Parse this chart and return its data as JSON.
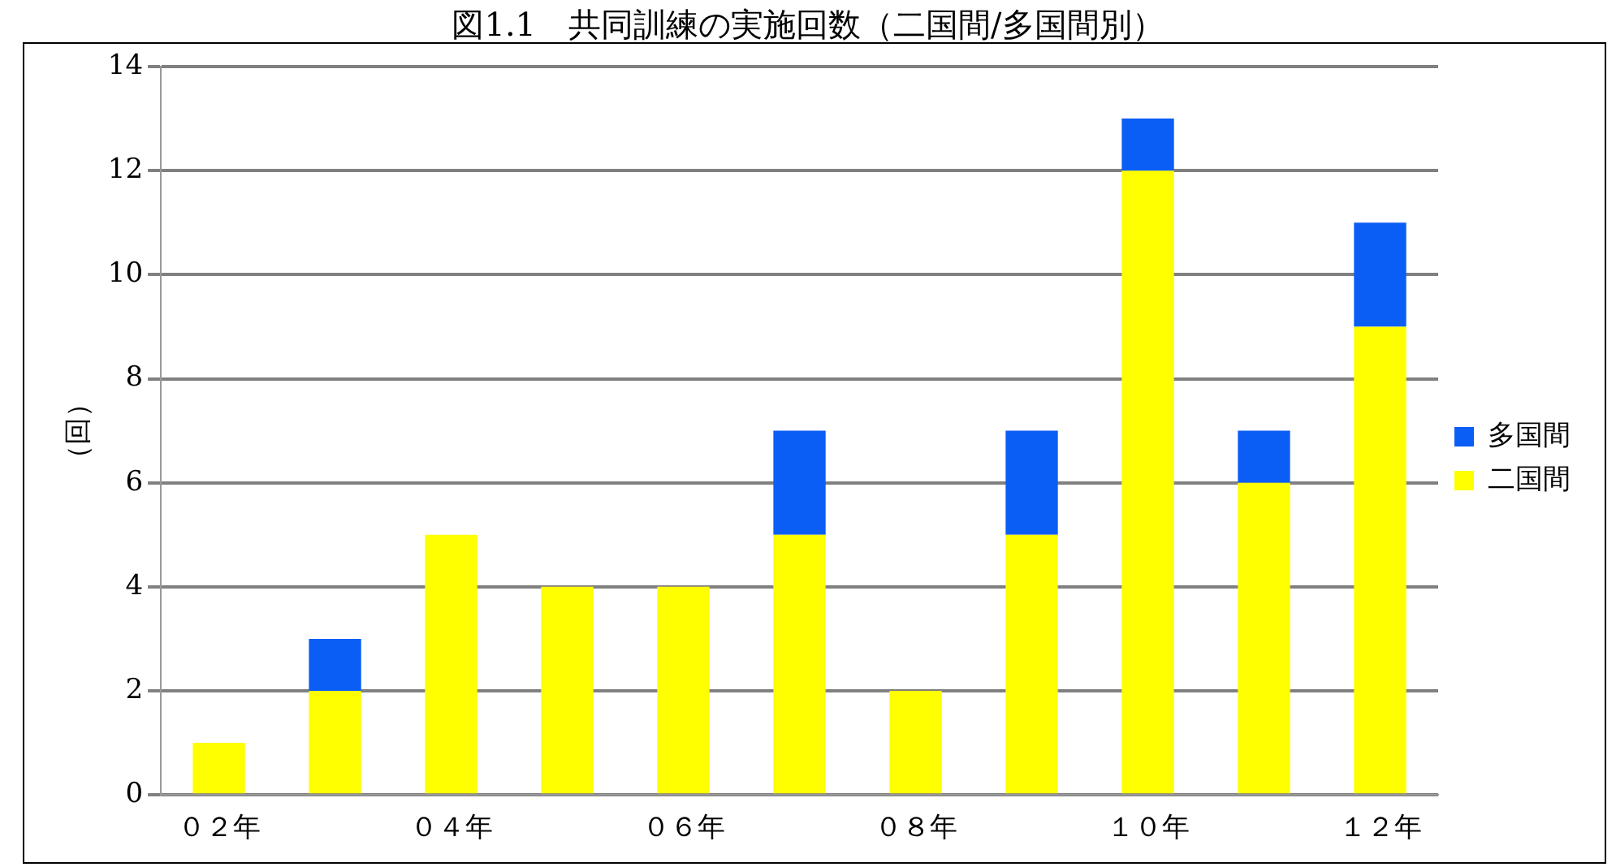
{
  "chart_data": {
    "type": "bar",
    "title": "図1.1　共同訓練の実施回数（二国間/多国間別）",
    "ylabel": "（回）",
    "categories": [
      "０２年",
      null,
      "０４年",
      null,
      "０６年",
      null,
      "０８年",
      null,
      "１０年",
      null,
      "１２年"
    ],
    "series": [
      {
        "name": "二国間",
        "color": "#ffff00",
        "values": [
          1,
          2,
          5,
          4,
          4,
          5,
          2,
          5,
          12,
          6,
          9
        ]
      },
      {
        "name": "多国間",
        "color": "#0b5ef5",
        "values": [
          0,
          1,
          0,
          0,
          0,
          2,
          0,
          2,
          1,
          1,
          2
        ]
      }
    ],
    "stacked": true,
    "ylim": [
      0,
      14
    ],
    "yticks": [
      0,
      2,
      4,
      6,
      8,
      10,
      12,
      14
    ],
    "grid": "y",
    "legend": "right"
  }
}
